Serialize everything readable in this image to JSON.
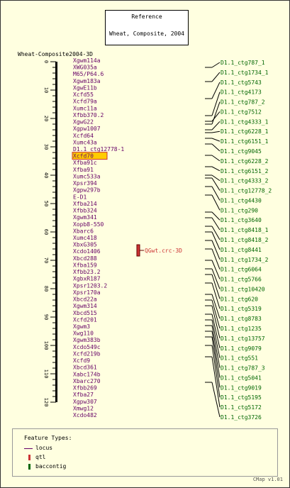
{
  "title": {
    "line1": "Reference",
    "line2": "Wheat, Composite, 2004"
  },
  "map_label": "Wheat-Composite2004-3D",
  "ticks": [
    0,
    10,
    20,
    30,
    40,
    50,
    60,
    70,
    80,
    90,
    100,
    110,
    120
  ],
  "markers": [
    "Xgwm114a",
    "XWG035a",
    "M65/P64.6",
    "Xgwm183a",
    "XgwE11b",
    "Xcfd55",
    "Xcfd79a",
    "Xumc11a",
    "Xfbb370.2",
    "XgwG22",
    "Xgpw1007",
    "Xcfd64",
    "Xumc43a",
    "D1.1_ctg12778-1",
    "Xcfd70",
    "Xfba91c",
    "Xfba91",
    "Xumc533a",
    "Xpsr394",
    "Xgpw297b",
    "E-D1",
    "Xfba214",
    "Xfbb324",
    "Xgwm341",
    "Xopb8-550",
    "Xbarc6",
    "Xumc418",
    "XbxG305",
    "Xcdo1406",
    "Xbcd288",
    "Xfba159",
    "Xfbb23.2",
    "XgbxR187",
    "Xpsr1203.2",
    "Xpsr170a",
    "Xbcd22a",
    "Xgwm314",
    "Xbcd515",
    "Xcfd201",
    "Xgwm3",
    "Xwg110",
    "Xgwm383b",
    "Xcdo549c",
    "Xcfd219b",
    "Xcfd9",
    "Xbcd361",
    "Xabc174b",
    "Xbarc270",
    "Xfbb269",
    "Xfba27",
    "Xgpw307",
    "Xmwg12",
    "Xcdo482"
  ],
  "highlighted_marker": "Xcfd70",
  "qtl": {
    "label": "QGwt.crc-3D"
  },
  "contigs": [
    "D1.1_ctg787_1",
    "D1.1_ctg1734_1",
    "D1.1_ctg5743",
    "D1.1_ctg4173",
    "D1.1_ctg787_2",
    "D1.1_ctg7512",
    "D1.1_ctg4333_1",
    "D1.1_ctg6228_1",
    "D1.1_ctg6151_1",
    "D1.1_ctg9045",
    "D1.1_ctg6228_2",
    "D1.1_ctg6151_2",
    "D1.1_ctg4333_2",
    "D1.1_ctg12778_2",
    "D1.1_ctg4430",
    "D1.1_ctg290",
    "D1.1_ctg3640",
    "D1.1_ctg8418_1",
    "D1.1_ctg8418_2",
    "D1.1_ctg8441",
    "D1.1_ctg1734_2",
    "D1.1_ctg6064",
    "D1.1_ctg5766",
    "D1.1_ctg10420",
    "D1.1_ctg620",
    "D1.1_ctg5319",
    "D1.1_ctg8783",
    "D1.1_ctg1235",
    "D1.1_ctg13757",
    "D1.1_ctg9079",
    "D1.1_ctg551",
    "D1.1_ctg787_3",
    "D1.1_ctg5041",
    "D1.1_ctg9019",
    "D1.1_ctg5195",
    "D1.1_ctg5172",
    "D1.1_ctg3726"
  ],
  "contig_cm": [
    2,
    7,
    13,
    19,
    22,
    21,
    24,
    25,
    27,
    29,
    33,
    37,
    40,
    41,
    44,
    47,
    53,
    55,
    58,
    60,
    63,
    66,
    70,
    73,
    75,
    78,
    82,
    84,
    86,
    89,
    91,
    93,
    95,
    97,
    100,
    104,
    113
  ],
  "legend": {
    "heading": "Feature Types:",
    "items": [
      "locus",
      "qtl",
      "baccontig"
    ]
  },
  "legend_colors": {
    "locus": "#660066",
    "qtl": "#cc3333",
    "baccontig": "#006600"
  },
  "footer": "CMap v1.01",
  "colors": {
    "marker_text": "#660066",
    "qtl_fill": "#cc3333",
    "contig_text": "#006600",
    "highlight_fill": "#ffcc00",
    "background": "#ffffe0"
  }
}
